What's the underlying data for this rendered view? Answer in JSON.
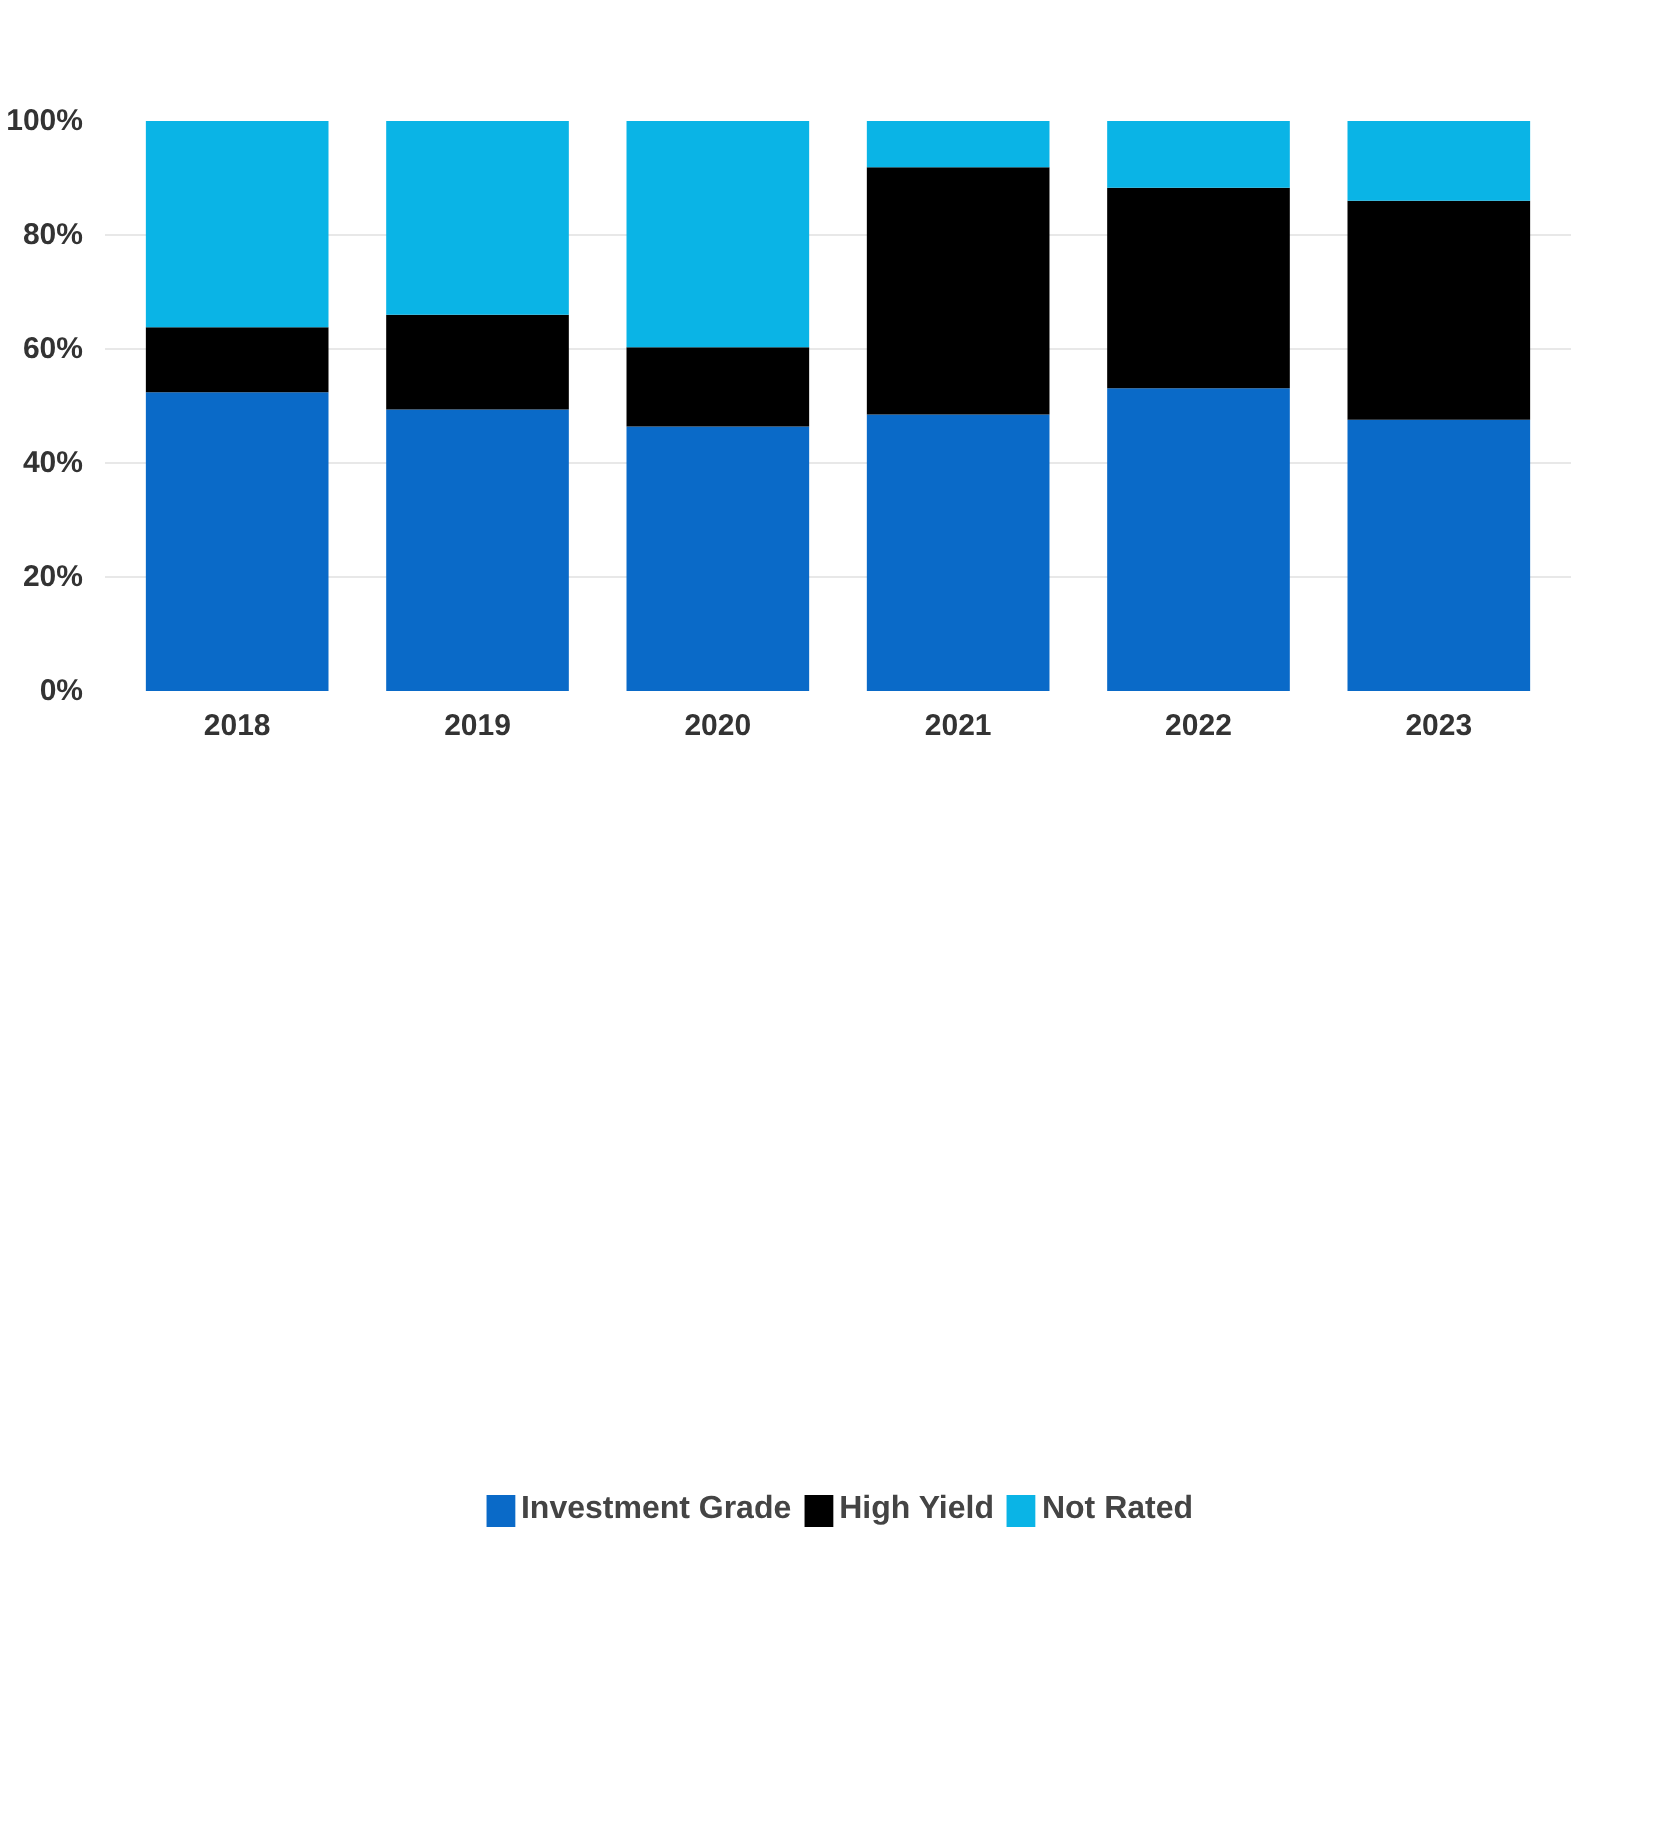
{
  "chart_data": {
    "type": "bar",
    "stacked": true,
    "categories": [
      "2018",
      "2019",
      "2020",
      "2021",
      "2022",
      "2023"
    ],
    "series": [
      {
        "name": "Investment Grade",
        "color": "#0a6ac8",
        "values": [
          52.4,
          49.4,
          46.4,
          48.5,
          53.1,
          47.6
        ]
      },
      {
        "name": "High Yield",
        "color": "#000000",
        "values": [
          11.4,
          16.6,
          13.9,
          43.4,
          35.2,
          38.4
        ]
      },
      {
        "name": "Not Rated",
        "color": "#0ab4e6",
        "values": [
          36.2,
          34.0,
          39.7,
          8.1,
          11.7,
          14.0
        ]
      }
    ],
    "ylim": [
      0,
      100
    ],
    "yticks": [
      {
        "value": 0,
        "label": "0%"
      },
      {
        "value": 20,
        "label": "20%"
      },
      {
        "value": 40,
        "label": "40%"
      },
      {
        "value": 60,
        "label": "60%"
      },
      {
        "value": 80,
        "label": "80%"
      },
      {
        "value": 100,
        "label": "100%"
      }
    ],
    "grid": "y",
    "legend": "bottom"
  }
}
